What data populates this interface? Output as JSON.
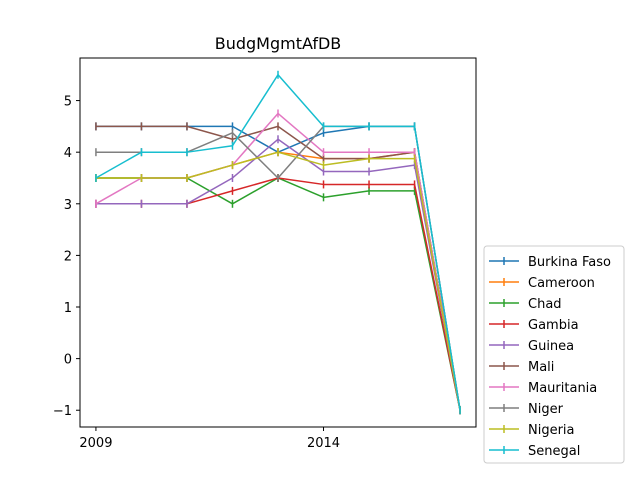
{
  "chart_data": {
    "type": "line",
    "title": "BudgMgmtAfDB",
    "xlabel": "",
    "ylabel": "",
    "x": [
      2009,
      2010,
      2011,
      2012,
      2013,
      2014,
      2015,
      2016,
      2017
    ],
    "xlim": [
      2008.65,
      2017.35
    ],
    "ylim": [
      -1.325,
      5.825
    ],
    "x_ticks": [
      2009,
      2014
    ],
    "x_tick_labels": [
      "2009",
      "2014"
    ],
    "y_ticks": [
      -1,
      0,
      1,
      2,
      3,
      4,
      5
    ],
    "y_tick_labels": [
      "−1",
      "0",
      "1",
      "2",
      "3",
      "4",
      "5"
    ],
    "grid": false,
    "legend_position": "outside-right-bottom",
    "series": [
      {
        "name": "Burkina Faso",
        "color": "#1f77b4",
        "values": [
          4.5,
          4.5,
          4.5,
          4.5,
          4.0,
          4.375,
          4.5,
          4.5,
          -1.0
        ]
      },
      {
        "name": "Cameroon",
        "color": "#ff7f0e",
        "values": [
          3.5,
          3.5,
          3.5,
          3.75,
          4.0,
          3.875,
          3.875,
          4.0,
          -1.0
        ]
      },
      {
        "name": "Chad",
        "color": "#2ca02c",
        "values": [
          3.5,
          3.5,
          3.5,
          3.0,
          3.5,
          3.125,
          3.25,
          3.25,
          -1.0
        ]
      },
      {
        "name": "Gambia",
        "color": "#d62728",
        "values": [
          3.0,
          3.0,
          3.0,
          3.25,
          3.5,
          3.375,
          3.375,
          3.375,
          -1.0
        ]
      },
      {
        "name": "Guinea",
        "color": "#9467bd",
        "values": [
          3.0,
          3.0,
          3.0,
          3.5,
          4.25,
          3.625,
          3.625,
          3.75,
          -1.0
        ]
      },
      {
        "name": "Mali",
        "color": "#8c564b",
        "values": [
          4.5,
          4.5,
          4.5,
          4.25,
          4.5,
          3.875,
          3.875,
          4.0,
          -1.0
        ]
      },
      {
        "name": "Mauritania",
        "color": "#e377c2",
        "values": [
          3.0,
          3.5,
          3.5,
          3.75,
          4.75,
          4.0,
          4.0,
          4.0,
          -1.0
        ]
      },
      {
        "name": "Niger",
        "color": "#7f7f7f",
        "values": [
          4.0,
          4.0,
          4.0,
          4.375,
          3.5,
          4.5,
          4.5,
          4.5,
          -1.0
        ]
      },
      {
        "name": "Nigeria",
        "color": "#bcbd22",
        "values": [
          3.5,
          3.5,
          3.5,
          3.75,
          4.0,
          3.75,
          3.875,
          3.875,
          -1.0
        ]
      },
      {
        "name": "Senegal",
        "color": "#17becf",
        "values": [
          3.5,
          4.0,
          4.0,
          4.125,
          5.5,
          4.5,
          4.5,
          4.5,
          -1.0
        ]
      }
    ]
  }
}
